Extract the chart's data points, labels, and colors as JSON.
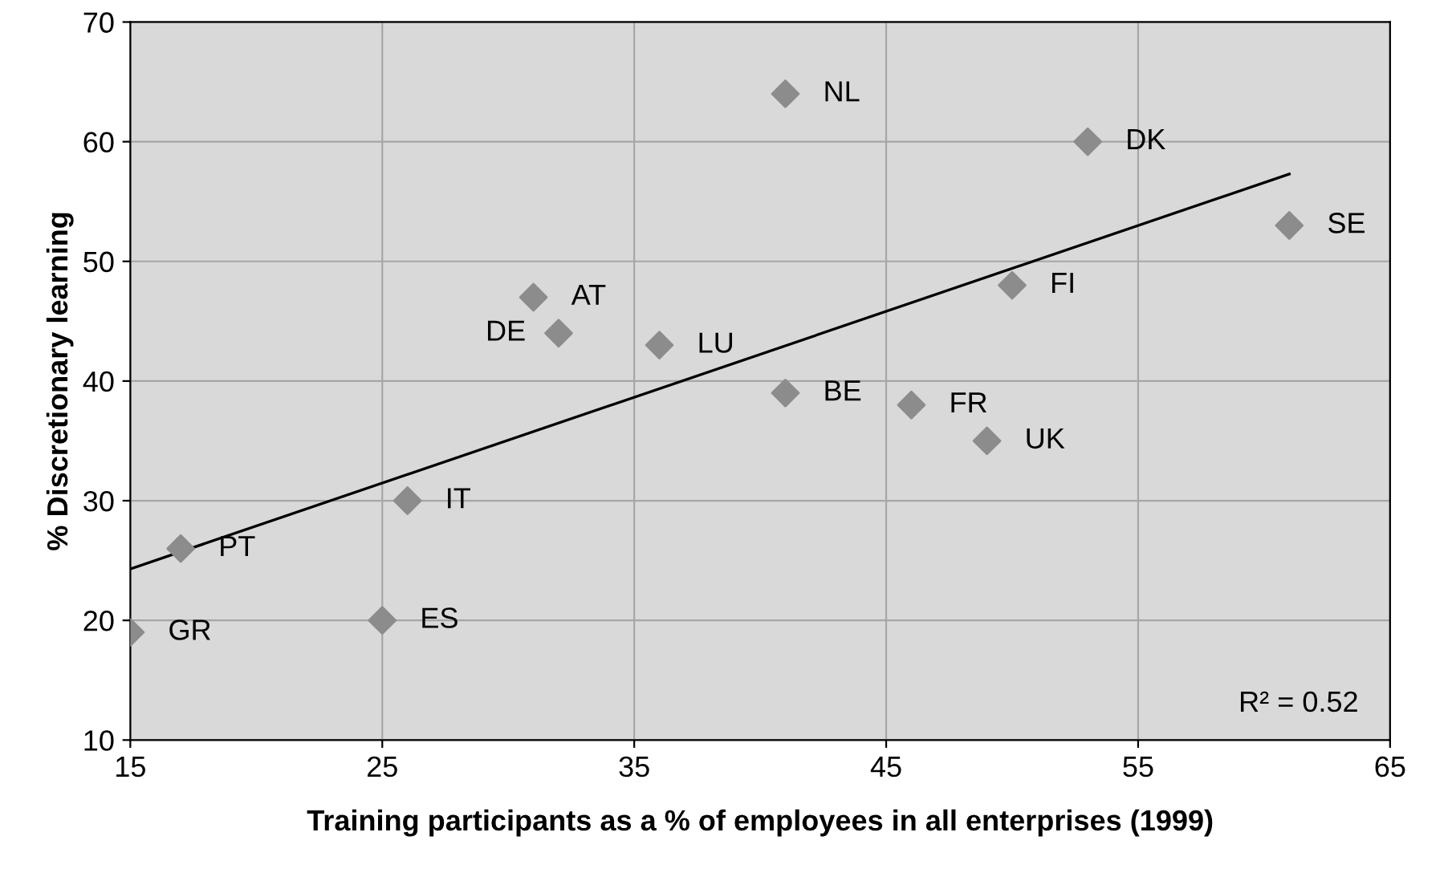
{
  "chart_data": {
    "type": "scatter",
    "xlabel": "Training participants as a % of employees in all enterprises (1999)",
    "ylabel": "% Discretionary learning",
    "xlim": [
      15,
      65
    ],
    "xticks": [
      15,
      25,
      35,
      45,
      55,
      65
    ],
    "ylim": [
      10,
      70
    ],
    "yticks": [
      10,
      20,
      30,
      40,
      50,
      60,
      70
    ],
    "grid": true,
    "legend": false,
    "series": [
      {
        "marker": "diamond",
        "color": "#8c8c8c",
        "x": [
          15,
          17,
          25,
          26,
          31,
          32,
          36,
          41,
          41,
          46,
          49,
          50,
          53,
          61
        ],
        "values": [
          19,
          26,
          20,
          30,
          47,
          44,
          43,
          64,
          39,
          38,
          35,
          48,
          60,
          53
        ]
      },
      {
        "type": "line",
        "marker": "none",
        "color": "#000000",
        "x": [
          15,
          61
        ],
        "values": [
          24.3,
          57.3
        ]
      }
    ],
    "annotations": [
      {
        "text": "GR",
        "x": 15,
        "y": 19
      },
      {
        "text": "PT",
        "x": 17,
        "y": 26
      },
      {
        "text": "ES",
        "x": 25,
        "y": 20
      },
      {
        "text": "IT",
        "x": 26,
        "y": 30
      },
      {
        "text": "AT",
        "x": 31,
        "y": 47
      },
      {
        "text": "DE",
        "x": 32,
        "y": 44
      },
      {
        "text": "LU",
        "x": 36,
        "y": 43
      },
      {
        "text": "NL",
        "x": 41,
        "y": 64
      },
      {
        "text": "BE",
        "x": 41,
        "y": 39
      },
      {
        "text": "FR",
        "x": 46,
        "y": 38
      },
      {
        "text": "UK",
        "x": 49,
        "y": 35
      },
      {
        "text": "FI",
        "x": 50,
        "y": 48
      },
      {
        "text": "DK",
        "x": 53,
        "y": 60
      },
      {
        "text": "SE",
        "x": 61,
        "y": 53
      },
      "R² = 0.52"
    ]
  }
}
